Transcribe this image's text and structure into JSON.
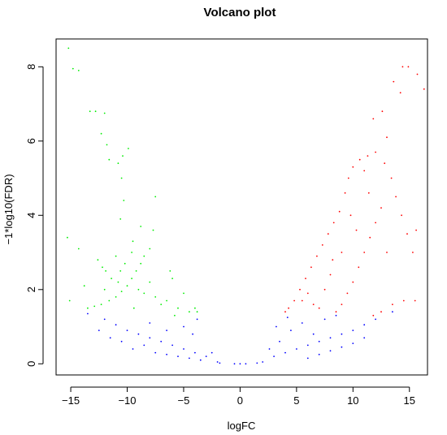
{
  "chart_data": {
    "type": "scatter",
    "title": "Volcano plot",
    "xlabel": "logFC",
    "ylabel": "−1*log10(FDR)",
    "xlim": [
      -16.3,
      16.6
    ],
    "ylim": [
      -0.3,
      8.75
    ],
    "xticks": [
      -15,
      -10,
      -5,
      0,
      5,
      10,
      15
    ],
    "xtick_labels": [
      "−15",
      "−10",
      "−5",
      "0",
      "5",
      "10",
      "15"
    ],
    "yticks": [
      0,
      2,
      4,
      6,
      8
    ],
    "ytick_labels": [
      "0",
      "2",
      "4",
      "6",
      "8"
    ],
    "grid": false,
    "legend": "none",
    "colors": {
      "down": "#00ee00",
      "not_significant": "#0000ff",
      "up": "#ff0000"
    },
    "series": [
      {
        "color": "#00ee00",
        "points": [
          [
            -15.2,
            8.5
          ],
          [
            -14.8,
            7.95
          ],
          [
            -14.3,
            7.9
          ],
          [
            -13.3,
            6.8
          ],
          [
            -12.8,
            6.8
          ],
          [
            -12.3,
            6.2
          ],
          [
            -12.0,
            6.75
          ],
          [
            -11.8,
            5.9
          ],
          [
            -11.6,
            5.5
          ],
          [
            -10.8,
            5.4
          ],
          [
            -10.5,
            5.0
          ],
          [
            -10.4,
            5.6
          ],
          [
            -10.3,
            4.4
          ],
          [
            -9.9,
            5.8
          ],
          [
            -10.6,
            3.9
          ],
          [
            -9.5,
            3.3
          ],
          [
            -8.8,
            3.7
          ],
          [
            -7.7,
            3.6
          ],
          [
            -7.5,
            4.5
          ],
          [
            -15.3,
            3.4
          ],
          [
            -14.3,
            3.1
          ],
          [
            -15.1,
            1.7
          ],
          [
            -13.5,
            1.5
          ],
          [
            -12.9,
            1.55
          ],
          [
            -12.3,
            1.6
          ],
          [
            -11.6,
            1.7
          ],
          [
            -11.0,
            1.8
          ],
          [
            -10.5,
            1.95
          ],
          [
            -10.0,
            2.1
          ],
          [
            -9.6,
            2.3
          ],
          [
            -9.2,
            2.5
          ],
          [
            -8.8,
            2.7
          ],
          [
            -8.5,
            2.9
          ],
          [
            -12.6,
            2.8
          ],
          [
            -12.2,
            2.6
          ],
          [
            -11.9,
            2.5
          ],
          [
            -11.4,
            2.3
          ],
          [
            -11.0,
            2.9
          ],
          [
            -10.6,
            2.5
          ],
          [
            -10.2,
            2.7
          ],
          [
            -9.6,
            3.0
          ],
          [
            -9.0,
            2.0
          ],
          [
            -8.5,
            1.9
          ],
          [
            -8.0,
            2.2
          ],
          [
            -7.5,
            1.8
          ],
          [
            -7.0,
            1.6
          ],
          [
            -6.5,
            1.7
          ],
          [
            -6.0,
            2.3
          ],
          [
            -5.5,
            1.5
          ],
          [
            -5.0,
            1.9
          ],
          [
            -4.5,
            1.4
          ],
          [
            -4.0,
            1.5
          ],
          [
            -3.8,
            1.4
          ],
          [
            -8.0,
            3.1
          ],
          [
            -6.2,
            2.5
          ],
          [
            -5.8,
            1.3
          ],
          [
            -13.8,
            2.1
          ],
          [
            -12.0,
            2.0
          ],
          [
            -10.8,
            2.2
          ],
          [
            -9.4,
            1.5
          ]
        ]
      },
      {
        "color": "#ff0000",
        "points": [
          [
            14.4,
            8.0
          ],
          [
            14.9,
            8.0
          ],
          [
            13.6,
            7.6
          ],
          [
            14.2,
            7.3
          ],
          [
            15.7,
            7.8
          ],
          [
            16.3,
            7.4
          ],
          [
            12.6,
            6.8
          ],
          [
            11.8,
            6.6
          ],
          [
            13.0,
            6.1
          ],
          [
            12.0,
            5.7
          ],
          [
            11.3,
            5.6
          ],
          [
            11.0,
            5.2
          ],
          [
            10.6,
            5.5
          ],
          [
            10.0,
            5.3
          ],
          [
            9.6,
            5.0
          ],
          [
            9.3,
            4.6
          ],
          [
            8.8,
            4.1
          ],
          [
            8.3,
            3.8
          ],
          [
            7.8,
            3.5
          ],
          [
            7.3,
            3.2
          ],
          [
            6.8,
            2.9
          ],
          [
            6.3,
            2.6
          ],
          [
            5.8,
            2.3
          ],
          [
            5.3,
            2.0
          ],
          [
            4.8,
            1.7
          ],
          [
            4.3,
            1.5
          ],
          [
            4.0,
            1.4
          ],
          [
            13.4,
            5.0
          ],
          [
            13.8,
            4.5
          ],
          [
            14.3,
            4.0
          ],
          [
            14.8,
            3.5
          ],
          [
            15.3,
            3.0
          ],
          [
            15.6,
            3.6
          ],
          [
            12.5,
            4.2
          ],
          [
            12.0,
            3.8
          ],
          [
            11.5,
            3.4
          ],
          [
            11.0,
            3.0
          ],
          [
            10.5,
            2.6
          ],
          [
            10.0,
            2.2
          ],
          [
            9.5,
            1.9
          ],
          [
            9.0,
            1.6
          ],
          [
            8.5,
            1.4
          ],
          [
            13.5,
            1.6
          ],
          [
            14.5,
            1.7
          ],
          [
            15.5,
            1.7
          ],
          [
            12.5,
            1.4
          ],
          [
            11.8,
            1.3
          ],
          [
            7.0,
            1.5
          ],
          [
            6.5,
            1.6
          ],
          [
            5.5,
            1.7
          ],
          [
            9.8,
            4.0
          ],
          [
            8.2,
            2.8
          ],
          [
            7.5,
            2.0
          ],
          [
            6.0,
            1.9
          ],
          [
            11.4,
            4.6
          ],
          [
            12.8,
            5.4
          ],
          [
            10.3,
            3.6
          ],
          [
            9.0,
            3.0
          ],
          [
            8.0,
            2.4
          ],
          [
            13.0,
            3.0
          ]
        ]
      },
      {
        "color": "#0000ff",
        "points": [
          [
            -13.5,
            1.35
          ],
          [
            -12.0,
            1.2
          ],
          [
            -11.0,
            1.05
          ],
          [
            -10.0,
            0.9
          ],
          [
            -9.0,
            0.8
          ],
          [
            -8.0,
            0.7
          ],
          [
            -7.0,
            0.6
          ],
          [
            -6.0,
            0.5
          ],
          [
            -5.0,
            0.4
          ],
          [
            -4.0,
            0.3
          ],
          [
            -3.0,
            0.2
          ],
          [
            -2.0,
            0.05
          ],
          [
            -10.5,
            0.6
          ],
          [
            -9.5,
            0.4
          ],
          [
            -8.5,
            0.5
          ],
          [
            -7.5,
            0.3
          ],
          [
            -6.5,
            0.25
          ],
          [
            -5.5,
            0.2
          ],
          [
            -4.5,
            0.15
          ],
          [
            -3.5,
            0.1
          ],
          [
            -12.5,
            0.9
          ],
          [
            -11.5,
            0.7
          ],
          [
            -8.0,
            1.1
          ],
          [
            -6.5,
            0.9
          ],
          [
            -5.0,
            1.0
          ],
          [
            -4.2,
            0.8
          ],
          [
            -3.8,
            1.2
          ],
          [
            -2.5,
            0.3
          ],
          [
            -1.8,
            0.02
          ],
          [
            -0.5,
            0.0
          ],
          [
            0.0,
            0.0
          ],
          [
            0.5,
            0.0
          ],
          [
            1.5,
            0.02
          ],
          [
            2.0,
            0.05
          ],
          [
            3.0,
            0.2
          ],
          [
            4.0,
            0.3
          ],
          [
            5.0,
            0.4
          ],
          [
            6.0,
            0.5
          ],
          [
            7.0,
            0.6
          ],
          [
            8.0,
            0.7
          ],
          [
            9.0,
            0.8
          ],
          [
            10.0,
            0.9
          ],
          [
            11.0,
            1.05
          ],
          [
            12.0,
            1.2
          ],
          [
            13.5,
            1.4
          ],
          [
            3.5,
            0.6
          ],
          [
            4.5,
            0.9
          ],
          [
            5.5,
            1.1
          ],
          [
            6.5,
            0.8
          ],
          [
            7.5,
            1.2
          ],
          [
            8.5,
            1.3
          ],
          [
            4.2,
            1.25
          ],
          [
            3.2,
            1.0
          ],
          [
            2.6,
            0.4
          ],
          [
            6.0,
            0.15
          ],
          [
            7.0,
            0.25
          ],
          [
            8.0,
            0.35
          ],
          [
            9.0,
            0.45
          ],
          [
            10.0,
            0.55
          ],
          [
            11.0,
            0.7
          ]
        ]
      }
    ]
  }
}
